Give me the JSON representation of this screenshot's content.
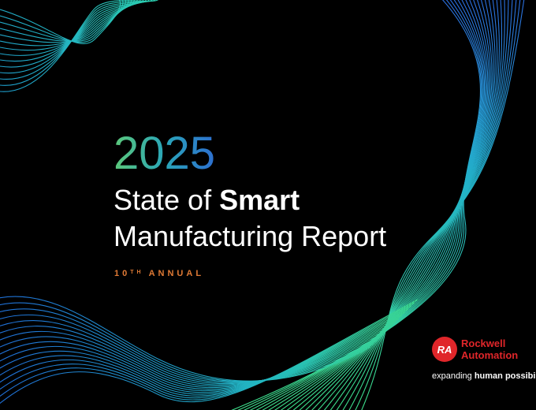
{
  "cover": {
    "year": "2025",
    "title_line1_plain": "State of ",
    "title_line1_bold": "Smart",
    "title_line2": "Manufacturing Report",
    "edition_number": "10",
    "edition_suffix": "TH",
    "edition_word": "ANNUAL"
  },
  "logo": {
    "mark": "RA",
    "name_line1": "Rockwell",
    "name_line2": "Automation",
    "tagline_plain": "expanding ",
    "tagline_bold": "human possibility"
  }
}
